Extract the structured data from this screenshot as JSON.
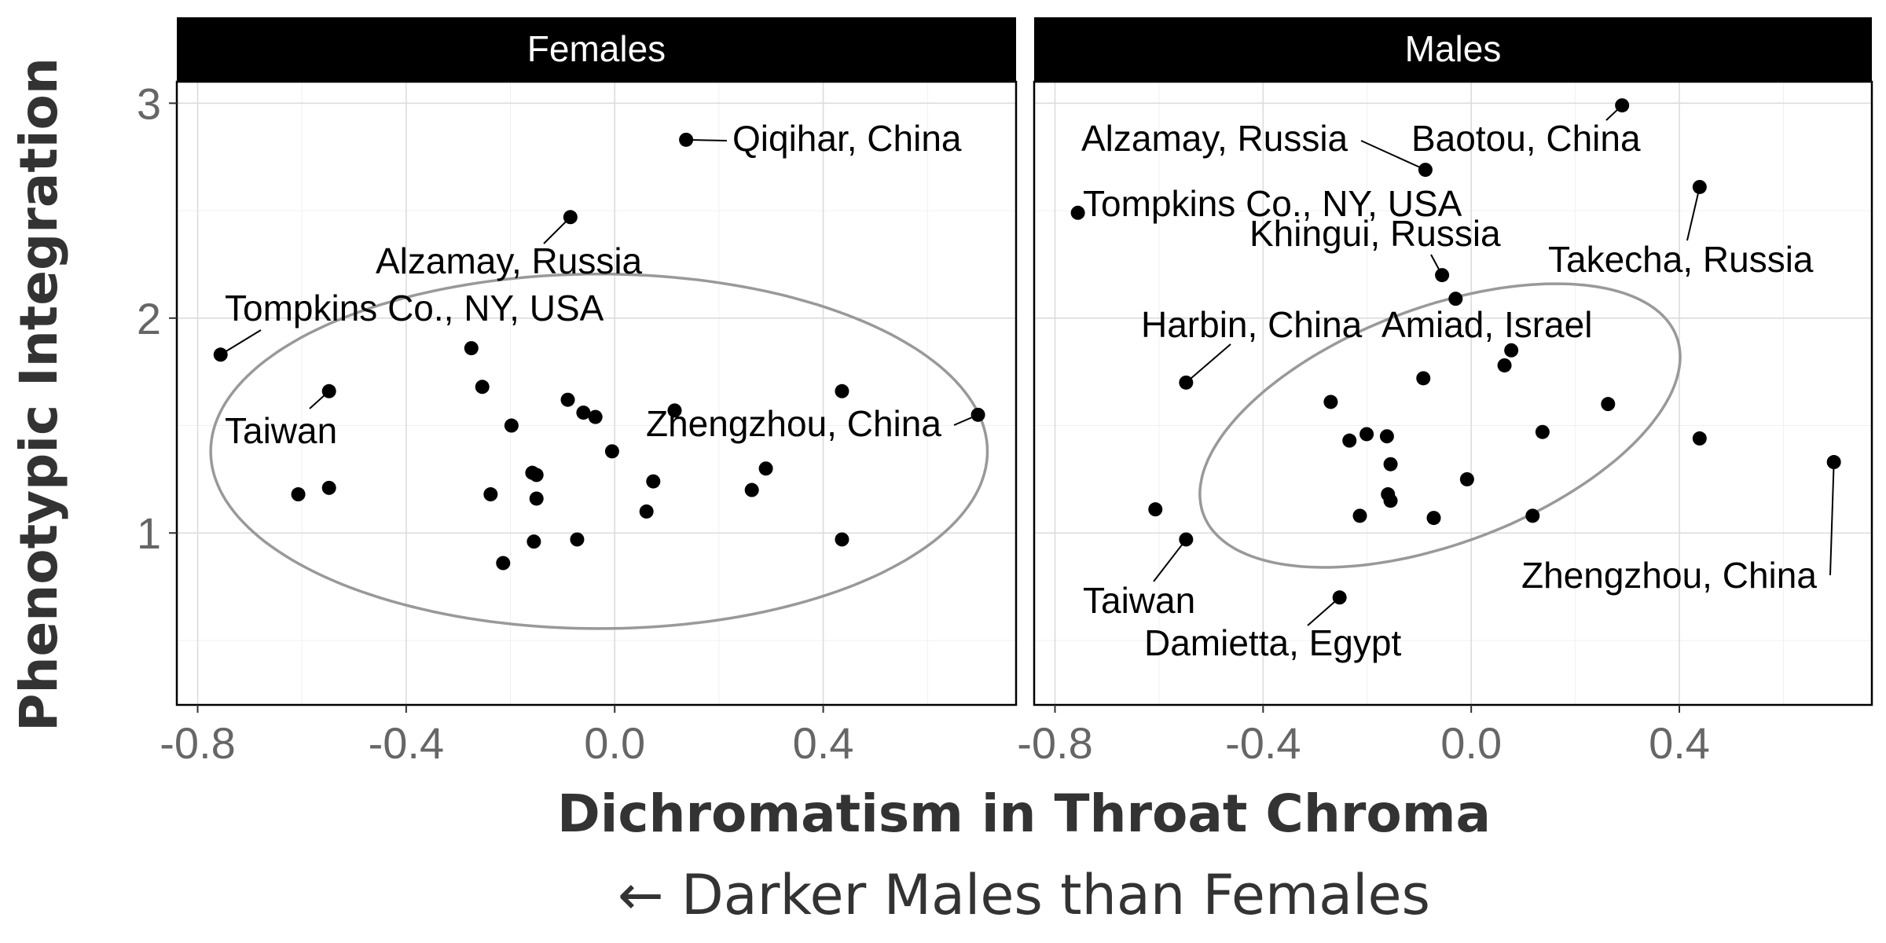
{
  "chart_data": {
    "type": "scatter",
    "xlabel": "Dichromatism in Throat Chroma",
    "ylabel": "Phenotypic Integration",
    "caption": "← Darker Males than Females",
    "xlim": [
      -0.84,
      0.77
    ],
    "ylim": [
      0.2,
      3.1
    ],
    "x_ticks": [
      -0.8,
      -0.4,
      0.0,
      0.4
    ],
    "x_tick_labels": [
      "-0.8",
      "-0.4",
      "0.0",
      "0.4"
    ],
    "y_ticks": [
      1,
      2,
      3
    ],
    "y_tick_labels": [
      "1",
      "2",
      "3"
    ],
    "grid": true,
    "panels": [
      {
        "title": "Females",
        "points": [
          {
            "x": -0.756,
            "y": 1.83
          },
          {
            "x": -0.548,
            "y": 1.66
          },
          {
            "x": -0.607,
            "y": 1.18
          },
          {
            "x": -0.548,
            "y": 1.21
          },
          {
            "x": -0.275,
            "y": 1.86
          },
          {
            "x": -0.254,
            "y": 1.68
          },
          {
            "x": -0.198,
            "y": 1.5
          },
          {
            "x": -0.238,
            "y": 1.18
          },
          {
            "x": -0.158,
            "y": 1.28
          },
          {
            "x": -0.15,
            "y": 1.27
          },
          {
            "x": -0.15,
            "y": 1.16
          },
          {
            "x": -0.155,
            "y": 0.96
          },
          {
            "x": -0.214,
            "y": 0.86
          },
          {
            "x": -0.09,
            "y": 1.62
          },
          {
            "x": -0.06,
            "y": 1.56
          },
          {
            "x": -0.037,
            "y": 1.54
          },
          {
            "x": -0.005,
            "y": 1.38
          },
          {
            "x": -0.072,
            "y": 0.97
          },
          {
            "x": -0.085,
            "y": 2.47
          },
          {
            "x": 0.137,
            "y": 2.83
          },
          {
            "x": 0.115,
            "y": 1.57
          },
          {
            "x": 0.074,
            "y": 1.24
          },
          {
            "x": 0.061,
            "y": 1.1
          },
          {
            "x": 0.29,
            "y": 1.3
          },
          {
            "x": 0.263,
            "y": 1.2
          },
          {
            "x": 0.436,
            "y": 1.66
          },
          {
            "x": 0.436,
            "y": 0.97
          },
          {
            "x": 0.697,
            "y": 1.55
          }
        ],
        "labels": [
          {
            "text": "Qiqihar, China"
          },
          {
            "text": "Alzamay, Russia"
          },
          {
            "text": "Tompkins Co., NY, USA"
          },
          {
            "text": "Taiwan"
          },
          {
            "text": "Zhengzhou, China"
          }
        ],
        "ellipse": {
          "center": [
            -0.03,
            1.38
          ],
          "x_semi": 0.745,
          "y_semi": 0.825
        }
      },
      {
        "title": "Males",
        "points": [
          {
            "x": -0.756,
            "y": 2.49
          },
          {
            "x": -0.607,
            "y": 1.11
          },
          {
            "x": -0.548,
            "y": 0.97
          },
          {
            "x": -0.548,
            "y": 1.7
          },
          {
            "x": -0.27,
            "y": 1.61
          },
          {
            "x": -0.234,
            "y": 1.43
          },
          {
            "x": -0.201,
            "y": 1.46
          },
          {
            "x": -0.162,
            "y": 1.45
          },
          {
            "x": -0.155,
            "y": 1.32
          },
          {
            "x": -0.16,
            "y": 1.18
          },
          {
            "x": -0.155,
            "y": 1.15
          },
          {
            "x": -0.214,
            "y": 1.08
          },
          {
            "x": -0.072,
            "y": 1.07
          },
          {
            "x": -0.253,
            "y": 0.7
          },
          {
            "x": -0.088,
            "y": 2.69
          },
          {
            "x": -0.056,
            "y": 2.2
          },
          {
            "x": -0.03,
            "y": 2.09
          },
          {
            "x": -0.092,
            "y": 1.72
          },
          {
            "x": -0.008,
            "y": 1.25
          },
          {
            "x": 0.064,
            "y": 1.78
          },
          {
            "x": 0.077,
            "y": 1.85
          },
          {
            "x": 0.137,
            "y": 1.47
          },
          {
            "x": 0.118,
            "y": 1.08
          },
          {
            "x": 0.29,
            "y": 2.99
          },
          {
            "x": 0.263,
            "y": 1.6
          },
          {
            "x": 0.439,
            "y": 2.61
          },
          {
            "x": 0.439,
            "y": 1.44
          },
          {
            "x": 0.697,
            "y": 1.33
          }
        ],
        "labels": [
          {
            "text": "Alzamay, Russia"
          },
          {
            "text": "Baotou, China"
          },
          {
            "text": "Tompkins Co., NY, USA"
          },
          {
            "text": "Khingui, Russia"
          },
          {
            "text": "Takecha, Russia"
          },
          {
            "text": "Harbin, China"
          },
          {
            "text": "Amiad, Israel"
          },
          {
            "text": "Taiwan"
          },
          {
            "text": "Damietta, Egypt"
          },
          {
            "text": "Zhengzhou, China"
          }
        ],
        "ellipse": {
          "center": [
            -0.06,
            1.5
          ],
          "angle_deg": 38,
          "r1": 0.86,
          "r2": 0.5
        }
      }
    ]
  }
}
